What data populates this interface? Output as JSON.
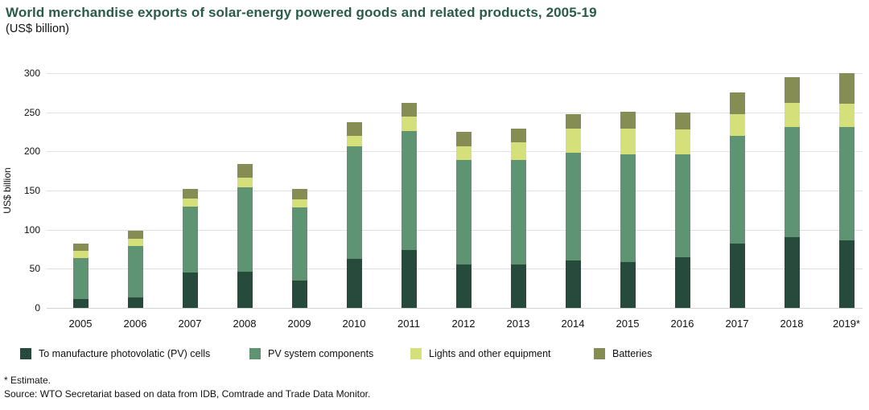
{
  "header": {
    "title": "World merchandise exports of solar-energy powered goods and related products, 2005-19",
    "subtitle": "(US$ billion)"
  },
  "chart_data": {
    "type": "bar",
    "stacked": true,
    "title": "World merchandise exports of solar-energy powered goods and related products, 2005-19",
    "subtitle": "(US$ billion)",
    "xlabel": "",
    "ylabel": "US$ billion",
    "ylim": [
      0,
      300
    ],
    "yticks": [
      0,
      50,
      100,
      150,
      200,
      250,
      300
    ],
    "grid": true,
    "legend_position": "bottom",
    "categories": [
      "2005",
      "2006",
      "2007",
      "2008",
      "2009",
      "2010",
      "2011",
      "2012",
      "2013",
      "2014",
      "2015",
      "2016",
      "2017",
      "2018",
      "2019*"
    ],
    "series": [
      {
        "name": "To manufacture photovolatic (PV) cells",
        "color": "#264b3d",
        "values": [
          11,
          13,
          45,
          46,
          35,
          63,
          74,
          56,
          55,
          61,
          59,
          65,
          82,
          90,
          86
        ]
      },
      {
        "name": "PV system components",
        "color": "#5e9471",
        "values": [
          53,
          66,
          84,
          108,
          93,
          144,
          152,
          133,
          134,
          137,
          137,
          131,
          138,
          141,
          145
        ]
      },
      {
        "name": "Lights and other equipment",
        "color": "#d5e07a",
        "values": [
          9,
          9,
          11,
          12,
          11,
          13,
          19,
          18,
          23,
          31,
          33,
          32,
          28,
          31,
          30
        ]
      },
      {
        "name": "Batteries",
        "color": "#858d55",
        "values": [
          9,
          11,
          12,
          18,
          13,
          17,
          17,
          18,
          17,
          19,
          22,
          22,
          27,
          33,
          39
        ]
      }
    ]
  },
  "footnotes": {
    "estimate": "* Estimate.",
    "source": "Source: WTO Secretariat based on data from IDB, Comtrade and Trade Data Monitor."
  }
}
